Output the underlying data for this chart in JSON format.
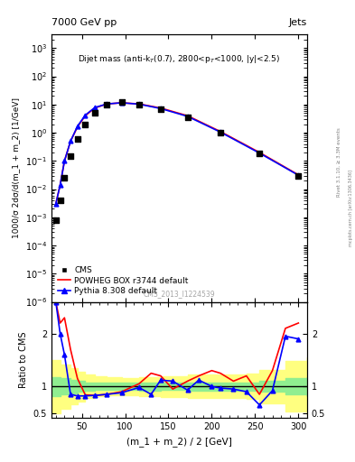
{
  "title_top": "7000 GeV pp",
  "title_right": "Jets",
  "annotation": "Dijet mass (anti-k$_{T}$(0.7), 2800<p$_{T}$<1000, |y|<2.5)",
  "watermark": "CMS_2013_I1224539",
  "arxiv": "mcplots.cern.ch [arXiv:1306.3436]",
  "rivet": "Rivet 3.1.10, ≥ 3.3M events",
  "xlabel": "(m_1 + m_2) / 2 [GeV]",
  "ylabel": "1000/σ 2dσ/d(m_1 + m_2) [1/GeV]",
  "ylabel_ratio": "Ratio to CMS",
  "xlim": [
    15,
    310
  ],
  "ylim_main": [
    1e-06,
    3000
  ],
  "ylim_ratio": [
    0.4,
    2.6
  ],
  "ratio_yticks": [
    0.5,
    1.0,
    2.0
  ],
  "cms_x": [
    20,
    25,
    30,
    37,
    45,
    54,
    65,
    79,
    96,
    116,
    141,
    172,
    210,
    255,
    300
  ],
  "cms_y": [
    0.0008,
    0.004,
    0.025,
    0.15,
    0.6,
    2.0,
    5.0,
    10.0,
    12.0,
    10.0,
    7.0,
    3.5,
    1.0,
    0.18,
    0.03
  ],
  "powheg_x": [
    20,
    25,
    30,
    37,
    45,
    54,
    65,
    79,
    96,
    116,
    141,
    172,
    210,
    255,
    300
  ],
  "powheg_y": [
    0.003,
    0.014,
    0.1,
    0.5,
    1.6,
    4.0,
    7.5,
    10.5,
    11.5,
    10.5,
    7.5,
    4.0,
    1.1,
    0.2,
    0.032
  ],
  "pythia_x": [
    20,
    25,
    30,
    37,
    45,
    54,
    65,
    79,
    96,
    116,
    141,
    172,
    210,
    255,
    300
  ],
  "pythia_y": [
    0.003,
    0.014,
    0.1,
    0.5,
    1.7,
    4.2,
    7.8,
    10.5,
    11.5,
    10.3,
    7.2,
    3.8,
    1.05,
    0.19,
    0.031
  ],
  "powheg_ratio_x": [
    20,
    25,
    30,
    37,
    45,
    54,
    65,
    79,
    96,
    116,
    130,
    141,
    155,
    172,
    185,
    200,
    210,
    225,
    240,
    255,
    270,
    285,
    300
  ],
  "powheg_ratio_y": [
    2.6,
    2.2,
    2.3,
    1.7,
    1.15,
    0.84,
    0.83,
    0.85,
    0.9,
    1.05,
    1.25,
    1.2,
    0.95,
    1.1,
    1.2,
    1.3,
    1.25,
    1.1,
    1.2,
    0.85,
    1.3,
    2.1,
    2.2
  ],
  "pythia_ratio_x": [
    20,
    25,
    30,
    37,
    45,
    54,
    65,
    79,
    96,
    116,
    130,
    141,
    155,
    172,
    185,
    200,
    210,
    225,
    240,
    255,
    270,
    285,
    300
  ],
  "pythia_ratio_y": [
    2.6,
    2.0,
    1.6,
    0.85,
    0.82,
    0.82,
    0.83,
    0.85,
    0.88,
    0.98,
    0.85,
    1.12,
    1.1,
    0.93,
    1.12,
    1.0,
    0.97,
    0.95,
    0.9,
    0.65,
    0.92,
    1.95,
    1.9
  ],
  "green_band_x": [
    15,
    20,
    25,
    37,
    45,
    54,
    65,
    79,
    96,
    116,
    141,
    172,
    210,
    240,
    255,
    285,
    310
  ],
  "green_band_lo": [
    0.82,
    0.82,
    0.85,
    0.87,
    0.9,
    0.92,
    0.93,
    0.93,
    0.93,
    0.92,
    0.93,
    0.92,
    0.92,
    0.92,
    0.9,
    0.85,
    0.82
  ],
  "green_band_hi": [
    1.18,
    1.18,
    1.15,
    1.13,
    1.1,
    1.08,
    1.07,
    1.07,
    1.07,
    1.08,
    1.07,
    1.08,
    1.08,
    1.08,
    1.1,
    1.15,
    1.18
  ],
  "yellow_band_x": [
    15,
    20,
    25,
    37,
    45,
    54,
    65,
    79,
    96,
    116,
    141,
    172,
    210,
    240,
    255,
    285,
    310
  ],
  "yellow_band_lo": [
    0.5,
    0.5,
    0.58,
    0.66,
    0.72,
    0.78,
    0.81,
    0.83,
    0.84,
    0.82,
    0.8,
    0.78,
    0.78,
    0.76,
    0.68,
    0.52,
    0.45
  ],
  "yellow_band_hi": [
    1.5,
    1.5,
    1.42,
    1.34,
    1.28,
    1.22,
    1.19,
    1.17,
    1.16,
    1.18,
    1.2,
    1.22,
    1.22,
    1.24,
    1.32,
    1.48,
    1.55
  ],
  "cms_color": "black",
  "powheg_color": "red",
  "pythia_color": "blue",
  "green_color": "#90EE90",
  "yellow_color": "#FFFF80",
  "legend_labels": [
    "CMS",
    "POWHEG BOX r3744 default",
    "Pythia 8.308 default"
  ]
}
